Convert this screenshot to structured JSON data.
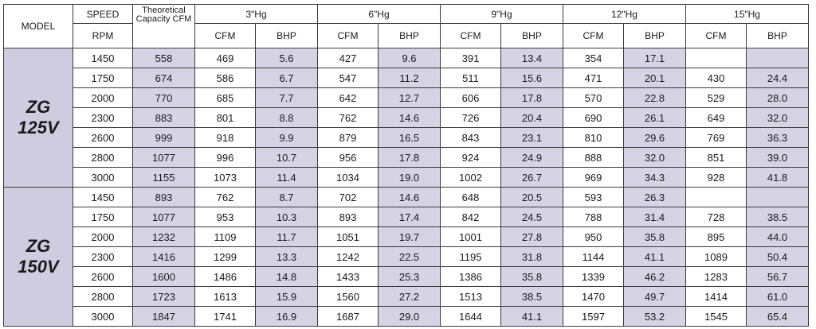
{
  "header": {
    "model": "MODEL",
    "speed": "SPEED",
    "rpm": "RPM",
    "theoretical": "Theoretical Capacity CFM",
    "groups": [
      "3\"Hg",
      "6\"Hg",
      "9\"Hg",
      "12\"Hg",
      "15\"Hg"
    ],
    "cfm": "CFM",
    "bhp": "BHP"
  },
  "models": [
    {
      "name_line1": "ZG",
      "name_line2": "125V",
      "rows": [
        [
          "1450",
          "558",
          "469",
          "5.6",
          "427",
          "9.6",
          "391",
          "13.4",
          "354",
          "17.1",
          "",
          ""
        ],
        [
          "1750",
          "674",
          "586",
          "6.7",
          "547",
          "11.2",
          "511",
          "15.6",
          "471",
          "20.1",
          "430",
          "24.4"
        ],
        [
          "2000",
          "770",
          "685",
          "7.7",
          "642",
          "12.7",
          "606",
          "17.8",
          "570",
          "22.8",
          "529",
          "28.0"
        ],
        [
          "2300",
          "883",
          "801",
          "8.8",
          "762",
          "14.6",
          "726",
          "20.4",
          "690",
          "26.1",
          "649",
          "32.0"
        ],
        [
          "2600",
          "999",
          "918",
          "9.9",
          "879",
          "16.5",
          "843",
          "23.1",
          "810",
          "29.6",
          "769",
          "36.3"
        ],
        [
          "2800",
          "1077",
          "996",
          "10.7",
          "956",
          "17.8",
          "924",
          "24.9",
          "888",
          "32.0",
          "851",
          "39.0"
        ],
        [
          "3000",
          "1155",
          "1073",
          "11.4",
          "1034",
          "19.0",
          "1002",
          "26.7",
          "969",
          "34.3",
          "928",
          "41.8"
        ]
      ]
    },
    {
      "name_line1": "ZG",
      "name_line2": "150V",
      "rows": [
        [
          "1450",
          "893",
          "762",
          "8.7",
          "702",
          "14.6",
          "648",
          "20.5",
          "593",
          "26.3",
          "",
          ""
        ],
        [
          "1750",
          "1077",
          "953",
          "10.3",
          "893",
          "17.4",
          "842",
          "24.5",
          "788",
          "31.4",
          "728",
          "38.5"
        ],
        [
          "2000",
          "1232",
          "1109",
          "11.7",
          "1051",
          "19.7",
          "1001",
          "27.8",
          "950",
          "35.8",
          "895",
          "44.0"
        ],
        [
          "2300",
          "1416",
          "1299",
          "13.3",
          "1242",
          "22.5",
          "1195",
          "31.8",
          "1144",
          "41.1",
          "1089",
          "50.4"
        ],
        [
          "2600",
          "1600",
          "1486",
          "14.8",
          "1433",
          "25.3",
          "1386",
          "35.8",
          "1339",
          "46.2",
          "1283",
          "56.7"
        ],
        [
          "2800",
          "1723",
          "1613",
          "15.9",
          "1560",
          "27.2",
          "1513",
          "38.5",
          "1470",
          "49.7",
          "1414",
          "61.0"
        ],
        [
          "3000",
          "1847",
          "1741",
          "16.9",
          "1687",
          "29.0",
          "1644",
          "41.1",
          "1597",
          "53.2",
          "1545",
          "65.4"
        ]
      ]
    }
  ]
}
